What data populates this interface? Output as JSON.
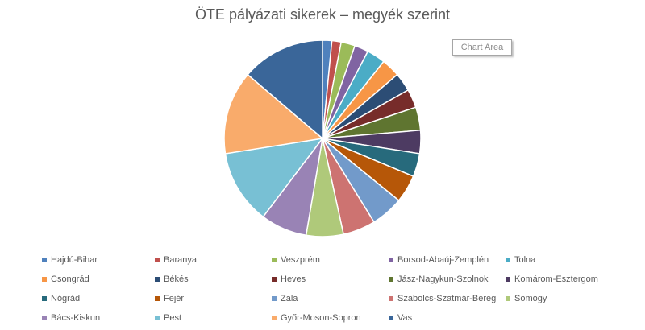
{
  "chart_data": {
    "type": "pie",
    "title": "ÖTE pályázati sikerek – megyék szerint",
    "tooltip": "Chart Area",
    "legend_position": "bottom",
    "slices": [
      {
        "label": "Hajdú-Bihar",
        "value": 1,
        "color": "#4F81BD"
      },
      {
        "label": "Baranya",
        "value": 1,
        "color": "#C0504D"
      },
      {
        "label": "Veszprém",
        "value": 1.5,
        "color": "#9BBB59"
      },
      {
        "label": "Borsod-Abaúj-Zemplén",
        "value": 1.5,
        "color": "#8064A2"
      },
      {
        "label": "Tolna",
        "value": 2,
        "color": "#4BACC6"
      },
      {
        "label": "Csongrád",
        "value": 2,
        "color": "#F79646"
      },
      {
        "label": "Békés",
        "value": 2,
        "color": "#2C4D75"
      },
      {
        "label": "Heves",
        "value": 2,
        "color": "#772C2A"
      },
      {
        "label": "Jász-Nagykun-Szolnok",
        "value": 2.5,
        "color": "#5F7530"
      },
      {
        "label": "Komárom-Esztergom",
        "value": 2.5,
        "color": "#4D3B62"
      },
      {
        "label": "Nógrád",
        "value": 2.5,
        "color": "#276A7C"
      },
      {
        "label": "Fejér",
        "value": 3,
        "color": "#B65708"
      },
      {
        "label": "Zala",
        "value": 3.5,
        "color": "#729ACA"
      },
      {
        "label": "Szabolcs-Szatmár-Bereg",
        "value": 3.5,
        "color": "#CD7371"
      },
      {
        "label": "Somogy",
        "value": 4,
        "color": "#AFC97A"
      },
      {
        "label": "Bács-Kiskun",
        "value": 5,
        "color": "#9983B5"
      },
      {
        "label": "Pest",
        "value": 8,
        "color": "#78C0D4"
      },
      {
        "label": "Győr-Moson-Sopron",
        "value": 9,
        "color": "#F9AB6B"
      },
      {
        "label": "Vas",
        "value": 9,
        "color": "#3A6699"
      }
    ]
  }
}
